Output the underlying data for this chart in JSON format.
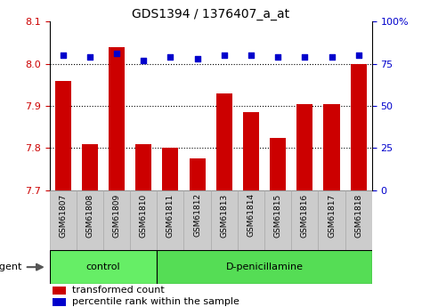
{
  "title": "GDS1394 / 1376407_a_at",
  "samples": [
    "GSM61807",
    "GSM61808",
    "GSM61809",
    "GSM61810",
    "GSM61811",
    "GSM61812",
    "GSM61813",
    "GSM61814",
    "GSM61815",
    "GSM61816",
    "GSM61817",
    "GSM61818"
  ],
  "bar_values": [
    7.96,
    7.81,
    8.04,
    7.81,
    7.8,
    7.775,
    7.93,
    7.885,
    7.825,
    7.905,
    7.905,
    8.0
  ],
  "percentile_values": [
    80,
    79,
    81,
    77,
    79,
    78,
    80,
    80,
    79,
    79,
    79,
    80
  ],
  "ylim_left": [
    7.7,
    8.1
  ],
  "ylim_right": [
    0,
    100
  ],
  "yticks_left": [
    7.7,
    7.8,
    7.9,
    8.0,
    8.1
  ],
  "yticks_right": [
    0,
    25,
    50,
    75,
    100
  ],
  "bar_color": "#cc0000",
  "dot_color": "#0000cc",
  "bar_width": 0.6,
  "groups": [
    {
      "label": "control",
      "indices": [
        0,
        1,
        2,
        3
      ],
      "color": "#66ee66"
    },
    {
      "label": "D-penicillamine",
      "indices": [
        4,
        5,
        6,
        7,
        8,
        9,
        10,
        11
      ],
      "color": "#55dd55"
    }
  ],
  "agent_label": "agent",
  "legend_bar_label": "transformed count",
  "legend_dot_label": "percentile rank within the sample",
  "background_color": "#ffffff",
  "tick_label_color_left": "#cc0000",
  "tick_label_color_right": "#0000cc",
  "xtick_box_color": "#cccccc",
  "grid_yticks": [
    7.8,
    7.9,
    8.0
  ]
}
